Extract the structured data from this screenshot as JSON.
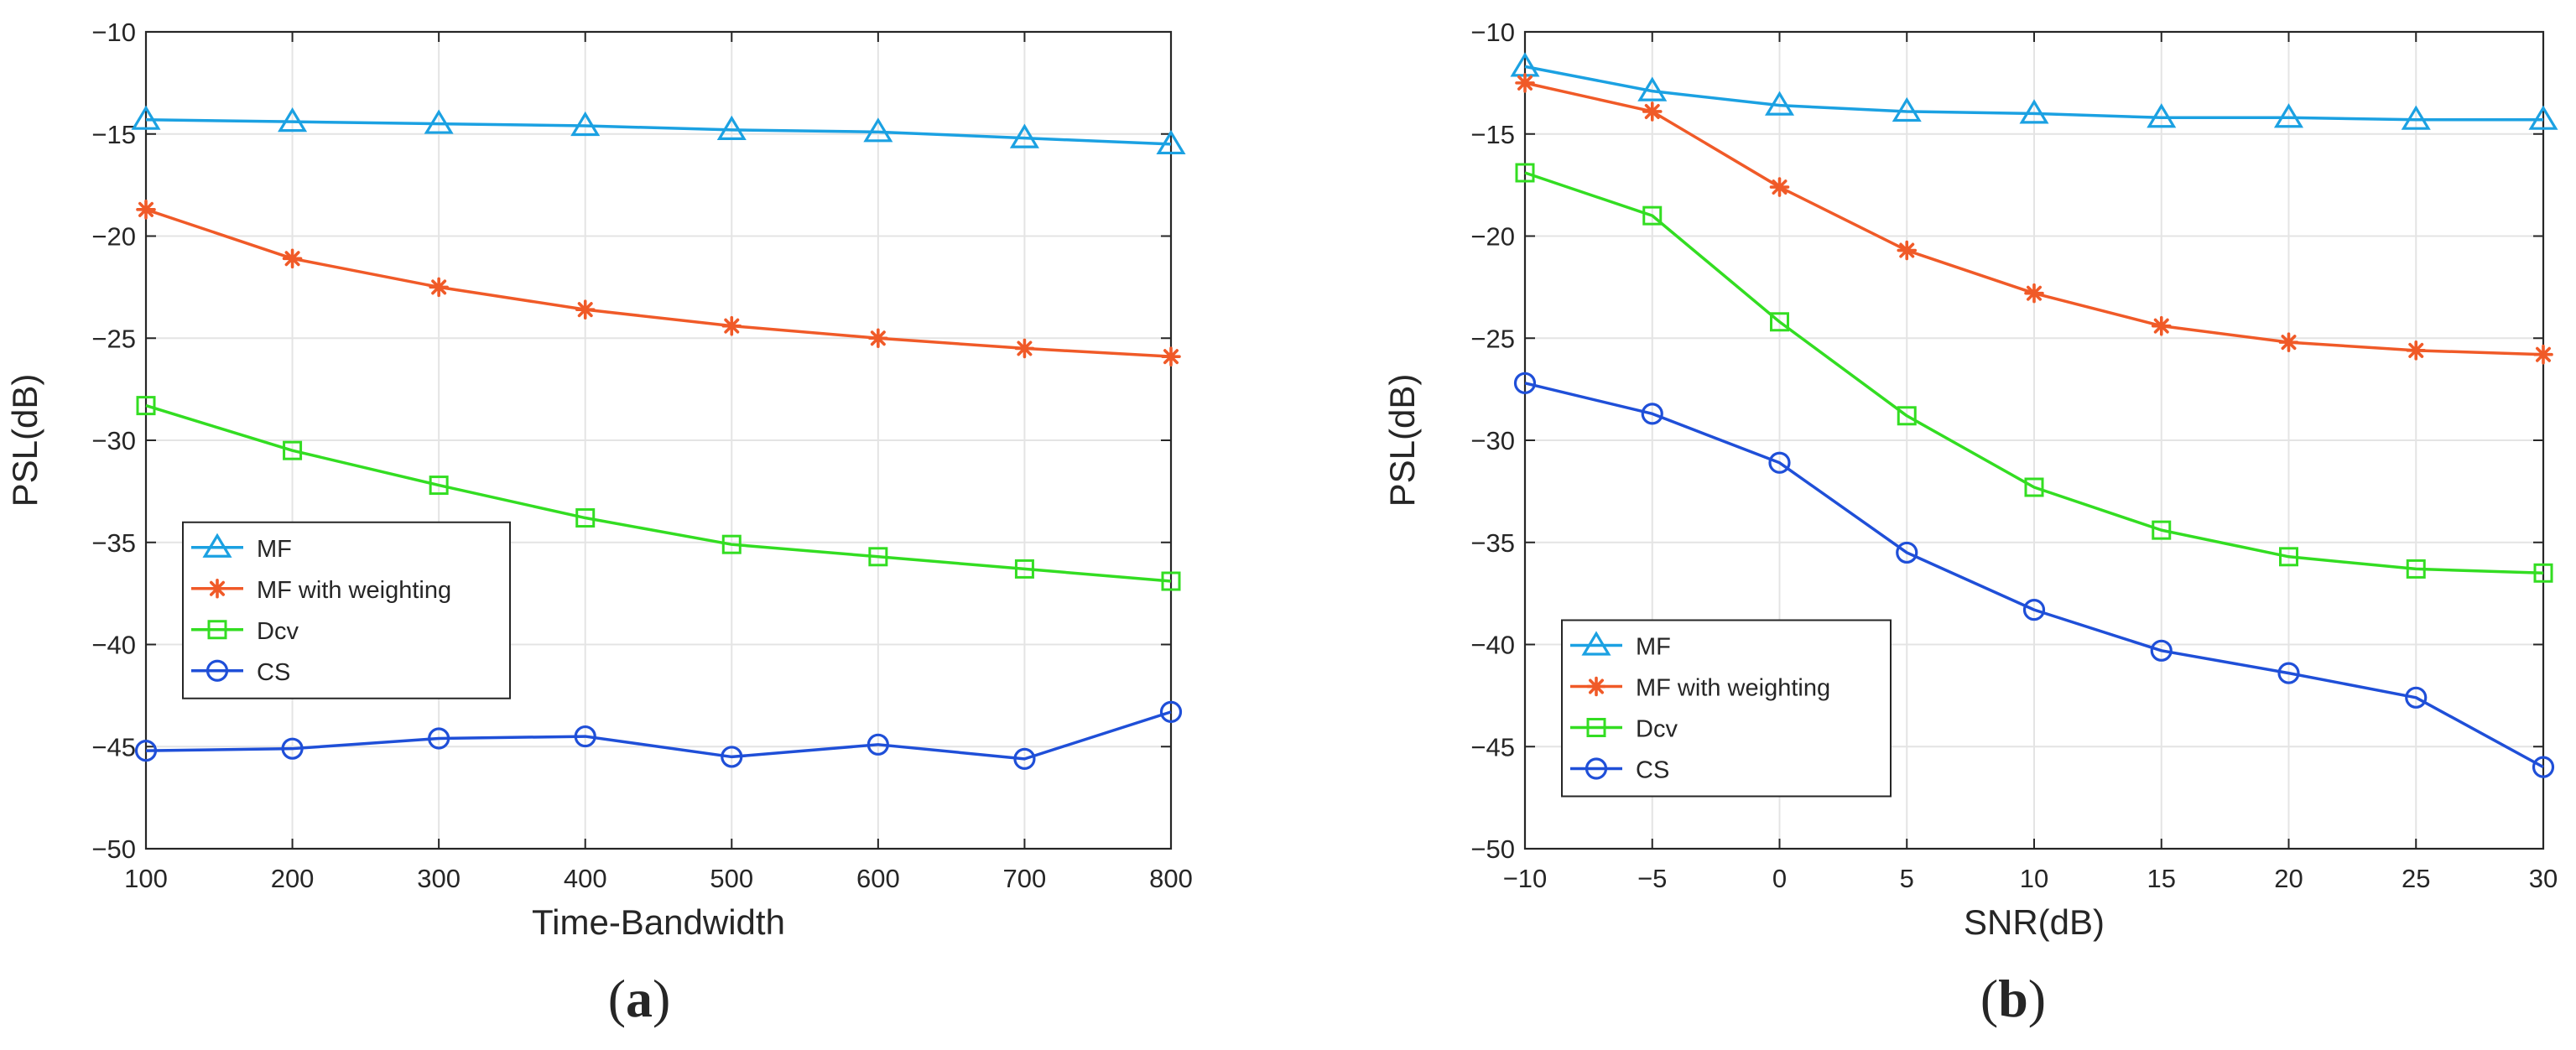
{
  "chart_data": [
    {
      "type": "line",
      "panel_label": "a",
      "title": "",
      "xlabel": "Time-Bandwidth",
      "ylabel": "PSL(dB)",
      "xlim": [
        100,
        800
      ],
      "ylim": [
        -50,
        -10
      ],
      "xticks": [
        100,
        200,
        300,
        400,
        500,
        600,
        700,
        800
      ],
      "yticks": [
        -50,
        -45,
        -40,
        -35,
        -30,
        -25,
        -20,
        -15,
        -10
      ],
      "x": [
        100,
        200,
        300,
        400,
        500,
        600,
        700,
        800
      ],
      "grid": true,
      "legend_position": "bottom-left",
      "series": [
        {
          "name": "MF",
          "marker": "triangle",
          "color": "#1ba1e2",
          "values": [
            -14.3,
            -14.4,
            -14.5,
            -14.6,
            -14.8,
            -14.9,
            -15.2,
            -15.5
          ]
        },
        {
          "name": "MF with weighting",
          "marker": "star",
          "color": "#f05a28",
          "values": [
            -18.7,
            -21.1,
            -22.5,
            -23.6,
            -24.4,
            -25.0,
            -25.5,
            -25.9
          ]
        },
        {
          "name": "Dcv",
          "marker": "square",
          "color": "#33dd22",
          "values": [
            -28.3,
            -30.5,
            -32.2,
            -33.8,
            -35.1,
            -35.7,
            -36.3,
            -36.9
          ]
        },
        {
          "name": "CS",
          "marker": "circle",
          "color": "#1f4fd8",
          "values": [
            -45.2,
            -45.1,
            -44.6,
            -44.5,
            -45.5,
            -44.9,
            -45.6,
            -43.3
          ]
        }
      ]
    },
    {
      "type": "line",
      "panel_label": "b",
      "title": "",
      "xlabel": "SNR(dB)",
      "ylabel": "PSL(dB)",
      "xlim": [
        -10,
        30
      ],
      "ylim": [
        -50,
        -10
      ],
      "xticks": [
        -10,
        -5,
        0,
        5,
        10,
        15,
        20,
        25,
        30
      ],
      "yticks": [
        -50,
        -45,
        -40,
        -35,
        -30,
        -25,
        -20,
        -15,
        -10
      ],
      "x": [
        -10,
        -5,
        0,
        5,
        10,
        15,
        20,
        25,
        30
      ],
      "grid": true,
      "legend_position": "bottom-left",
      "series": [
        {
          "name": "MF",
          "marker": "triangle",
          "color": "#1ba1e2",
          "values": [
            -11.7,
            -12.9,
            -13.6,
            -13.9,
            -14.0,
            -14.2,
            -14.2,
            -14.3,
            -14.3
          ]
        },
        {
          "name": "MF with weighting",
          "marker": "star",
          "color": "#f05a28",
          "values": [
            -12.5,
            -13.9,
            -17.6,
            -20.7,
            -22.8,
            -24.4,
            -25.2,
            -25.6,
            -25.8
          ]
        },
        {
          "name": "Dcv",
          "marker": "square",
          "color": "#33dd22",
          "values": [
            -16.9,
            -19.0,
            -24.2,
            -28.8,
            -32.3,
            -34.4,
            -35.7,
            -36.3,
            -36.5
          ]
        },
        {
          "name": "CS",
          "marker": "circle",
          "color": "#1f4fd8",
          "values": [
            -27.2,
            -28.7,
            -31.1,
            -35.5,
            -38.3,
            -40.3,
            -41.4,
            -42.6,
            -46.0
          ]
        }
      ]
    }
  ]
}
